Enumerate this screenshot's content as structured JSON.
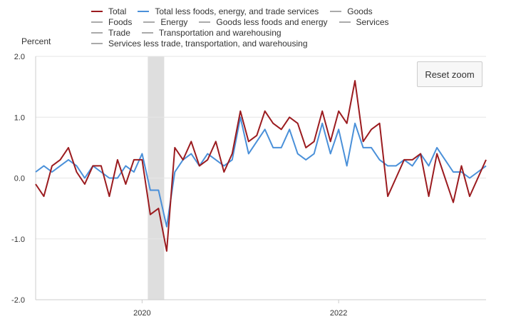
{
  "chart_data": {
    "type": "line",
    "ylabel": "Percent",
    "ylim": [
      -2.0,
      2.0
    ],
    "y_ticks": [
      "2.0",
      "1.0",
      "0.0",
      "-1.0",
      "-2.0"
    ],
    "y_tick_values": [
      2.0,
      1.0,
      0.0,
      -1.0,
      -2.0
    ],
    "x_ticks": [
      {
        "label": "2020",
        "x": 30
      },
      {
        "label": "2022",
        "x": 54
      }
    ],
    "x_range": [
      17,
      72
    ],
    "shaded_range": [
      30.7,
      32.7
    ],
    "x": [
      17,
      18,
      19,
      20,
      21,
      22,
      23,
      24,
      25,
      26,
      27,
      28,
      29,
      30,
      31,
      32,
      33,
      34,
      35,
      36,
      37,
      38,
      39,
      40,
      41,
      42,
      43,
      44,
      45,
      46,
      47,
      48,
      49,
      50,
      51,
      52,
      53,
      54,
      55,
      56,
      57,
      58,
      59,
      60,
      61,
      62,
      63,
      64,
      65,
      66,
      67,
      68,
      69,
      70,
      71,
      72
    ],
    "series": [
      {
        "name": "Total",
        "color": "#9b1b1f",
        "values": [
          -0.1,
          -0.3,
          0.2,
          0.3,
          0.5,
          0.1,
          -0.1,
          0.2,
          0.2,
          -0.3,
          0.3,
          -0.1,
          0.3,
          0.3,
          -0.6,
          -0.5,
          -1.2,
          0.5,
          0.3,
          0.6,
          0.2,
          0.3,
          0.6,
          0.1,
          0.4,
          1.1,
          0.6,
          0.7,
          1.1,
          0.9,
          0.8,
          1.0,
          0.9,
          0.5,
          0.6,
          1.1,
          0.6,
          1.1,
          0.9,
          1.6,
          0.6,
          0.8,
          0.9,
          -0.3,
          0.0,
          0.3,
          0.3,
          0.4,
          -0.3,
          0.4,
          0.0,
          -0.4,
          0.2,
          -0.3,
          0.0,
          0.3
        ]
      },
      {
        "name": "Total less foods, energy, and trade services",
        "color": "#4a90d9",
        "values": [
          0.1,
          0.2,
          0.1,
          0.2,
          0.3,
          0.2,
          0.0,
          0.2,
          0.1,
          0.0,
          0.0,
          0.2,
          0.1,
          0.4,
          -0.2,
          -0.2,
          -0.8,
          0.1,
          0.3,
          0.4,
          0.2,
          0.4,
          0.3,
          0.2,
          0.3,
          1.0,
          0.4,
          0.6,
          0.8,
          0.5,
          0.5,
          0.8,
          0.4,
          0.3,
          0.4,
          0.9,
          0.4,
          0.8,
          0.2,
          0.9,
          0.5,
          0.5,
          0.3,
          0.2,
          0.2,
          0.3,
          0.2,
          0.4,
          0.2,
          0.5,
          0.3,
          0.1,
          0.1,
          0.0,
          0.1,
          0.2
        ]
      }
    ],
    "legend": [
      [
        {
          "name": "Total",
          "color": "#9b1b1f"
        },
        {
          "name": "Total less foods, energy, and trade services",
          "color": "#4a90d9"
        },
        {
          "name": "Goods",
          "color": "#aaaaaa"
        }
      ],
      [
        {
          "name": "Foods",
          "color": "#aaaaaa"
        },
        {
          "name": "Energy",
          "color": "#aaaaaa"
        },
        {
          "name": "Goods less foods and energy",
          "color": "#aaaaaa"
        },
        {
          "name": "Services",
          "color": "#aaaaaa"
        }
      ],
      [
        {
          "name": "Trade",
          "color": "#aaaaaa"
        },
        {
          "name": "Transportation and warehousing",
          "color": "#aaaaaa"
        }
      ],
      [
        {
          "name": "Services less trade, transportation, and warehousing",
          "color": "#aaaaaa"
        }
      ]
    ]
  },
  "ui": {
    "reset_zoom_label": "Reset zoom"
  }
}
